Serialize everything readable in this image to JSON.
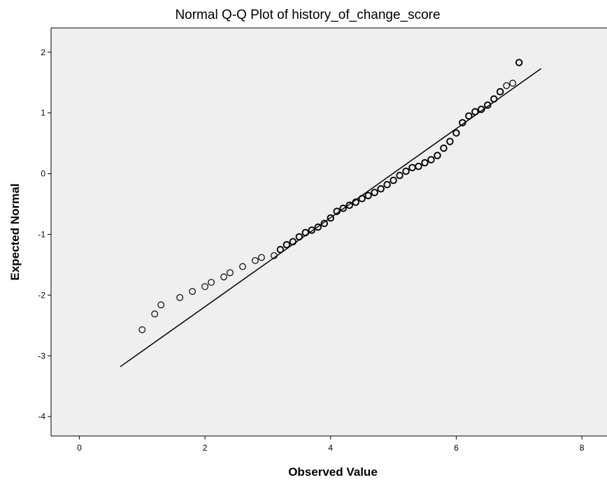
{
  "chart_data": {
    "type": "scatter",
    "title": "Normal Q-Q Plot of history_of_change_score",
    "xlabel": "Observed Value",
    "ylabel": "Expected Normal",
    "xlim": [
      -0.45,
      8.4
    ],
    "ylim": [
      -4.32,
      2.4
    ],
    "xticks": [
      "0",
      "2",
      "4",
      "6",
      "8"
    ],
    "yticks": [
      "2",
      "1",
      "0",
      "-1",
      "-2",
      "-3",
      "-4"
    ],
    "xtick_values": [
      0,
      2,
      4,
      6,
      8
    ],
    "ytick_values": [
      2,
      1,
      0,
      -1,
      -2,
      -3,
      -4
    ],
    "grid": false,
    "legend": "none",
    "colors": {
      "plot_bg": "#efefef",
      "marker": "#000000",
      "line": "#000000"
    },
    "reference_line": {
      "x": [
        0.65,
        7.35
      ],
      "y": [
        -3.18,
        1.73
      ]
    },
    "points": [
      {
        "x": 1.0,
        "y": -2.57
      },
      {
        "x": 1.2,
        "y": -2.31
      },
      {
        "x": 1.3,
        "y": -2.16
      },
      {
        "x": 1.6,
        "y": -2.04
      },
      {
        "x": 1.8,
        "y": -1.94
      },
      {
        "x": 2.0,
        "y": -1.86
      },
      {
        "x": 2.1,
        "y": -1.79
      },
      {
        "x": 2.3,
        "y": -1.7
      },
      {
        "x": 2.4,
        "y": -1.63
      },
      {
        "x": 2.6,
        "y": -1.53
      },
      {
        "x": 2.8,
        "y": -1.43
      },
      {
        "x": 2.9,
        "y": -1.38
      },
      {
        "x": 3.1,
        "y": -1.35
      },
      {
        "x": 3.2,
        "y": -1.25
      },
      {
        "x": 3.3,
        "y": -1.17
      },
      {
        "x": 3.4,
        "y": -1.12
      },
      {
        "x": 3.5,
        "y": -1.04
      },
      {
        "x": 3.6,
        "y": -0.97
      },
      {
        "x": 3.7,
        "y": -0.93
      },
      {
        "x": 3.8,
        "y": -0.88
      },
      {
        "x": 3.9,
        "y": -0.82
      },
      {
        "x": 4.0,
        "y": -0.73
      },
      {
        "x": 4.1,
        "y": -0.62
      },
      {
        "x": 4.2,
        "y": -0.57
      },
      {
        "x": 4.3,
        "y": -0.52
      },
      {
        "x": 4.4,
        "y": -0.47
      },
      {
        "x": 4.5,
        "y": -0.41
      },
      {
        "x": 4.6,
        "y": -0.36
      },
      {
        "x": 4.7,
        "y": -0.31
      },
      {
        "x": 4.8,
        "y": -0.25
      },
      {
        "x": 4.9,
        "y": -0.18
      },
      {
        "x": 5.0,
        "y": -0.11
      },
      {
        "x": 5.1,
        "y": -0.03
      },
      {
        "x": 5.2,
        "y": 0.04
      },
      {
        "x": 5.3,
        "y": 0.1
      },
      {
        "x": 5.4,
        "y": 0.12
      },
      {
        "x": 5.5,
        "y": 0.18
      },
      {
        "x": 5.6,
        "y": 0.23
      },
      {
        "x": 5.7,
        "y": 0.3
      },
      {
        "x": 5.8,
        "y": 0.42
      },
      {
        "x": 5.9,
        "y": 0.53
      },
      {
        "x": 6.0,
        "y": 0.67
      },
      {
        "x": 6.1,
        "y": 0.84
      },
      {
        "x": 6.2,
        "y": 0.95
      },
      {
        "x": 6.3,
        "y": 1.02
      },
      {
        "x": 6.4,
        "y": 1.06
      },
      {
        "x": 6.5,
        "y": 1.13
      },
      {
        "x": 6.6,
        "y": 1.23
      },
      {
        "x": 6.7,
        "y": 1.35
      },
      {
        "x": 6.8,
        "y": 1.45
      },
      {
        "x": 6.9,
        "y": 1.49
      },
      {
        "x": 7.0,
        "y": 1.83
      }
    ]
  }
}
